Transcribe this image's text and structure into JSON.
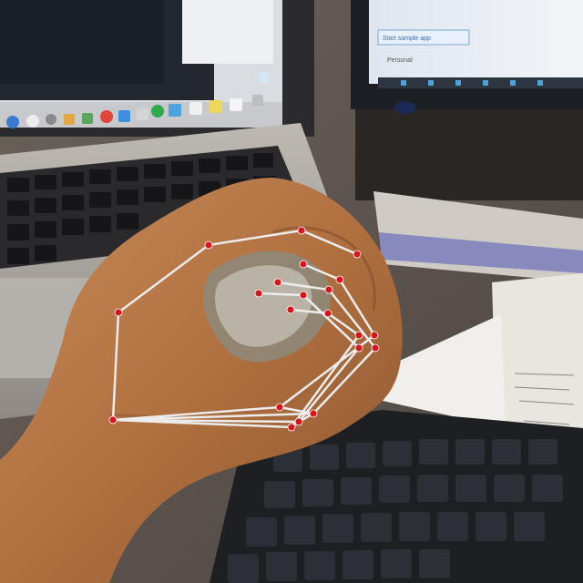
{
  "image": {
    "subject": "hand-pose-keypoints",
    "keypoint_color": "#d9141b",
    "skeleton_color": "#ececec",
    "keypoint_count": 21
  },
  "monitor": {
    "heading": "Personal",
    "button_label": "Start sample app"
  }
}
